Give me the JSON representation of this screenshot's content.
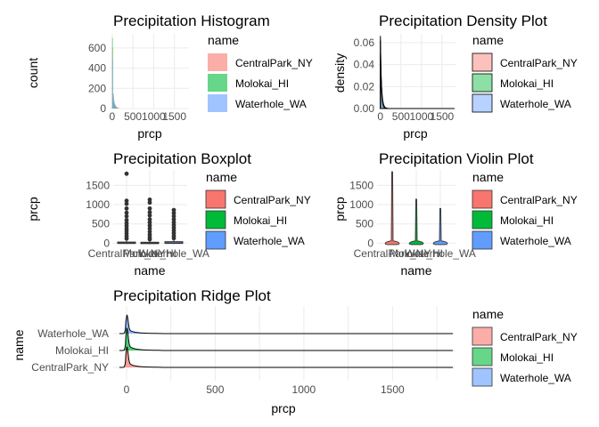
{
  "chart_data": [
    {
      "id": "hist",
      "type": "bar",
      "title": "Precipitation Histogram",
      "xlabel": "prcp",
      "ylabel": "count",
      "xlim": [
        -60,
        1850
      ],
      "ylim": [
        0,
        740
      ],
      "xticks": [
        0,
        500,
        1000,
        1500
      ],
      "xtick_labels": [
        "0",
        "500",
        "1000",
        "1500"
      ],
      "yticks": [
        0,
        200,
        400,
        600
      ],
      "yticks_labels": [
        "0",
        "200",
        "400",
        "600"
      ],
      "legend_title": "name",
      "series": [
        {
          "name": "CentralPark_NY",
          "color": "#F8766D",
          "bins": [
            [
              0,
              600
            ],
            [
              20,
              140
            ],
            [
              40,
              70
            ],
            [
              60,
              45
            ],
            [
              80,
              30
            ],
            [
              100,
              20
            ],
            [
              120,
              12
            ],
            [
              140,
              8
            ],
            [
              160,
              5
            ]
          ]
        },
        {
          "name": "Molokai_HI",
          "color": "#00BA38",
          "bins": [
            [
              0,
              700
            ],
            [
              20,
              110
            ],
            [
              40,
              55
            ],
            [
              60,
              30
            ],
            [
              80,
              18
            ],
            [
              100,
              10
            ],
            [
              120,
              6
            ]
          ]
        },
        {
          "name": "Waterhole_WA",
          "color": "#619CFF",
          "bins": [
            [
              0,
              480
            ],
            [
              20,
              150
            ],
            [
              40,
              80
            ],
            [
              60,
              40
            ],
            [
              80,
              20
            ],
            [
              100,
              10
            ]
          ]
        }
      ]
    },
    {
      "id": "density",
      "type": "area",
      "title": "Precipitation Density Plot",
      "xlabel": "prcp",
      "ylabel": "density",
      "xlim": [
        -60,
        1850
      ],
      "ylim": [
        0,
        0.068
      ],
      "xticks": [
        0,
        500,
        1000,
        1500
      ],
      "xtick_labels": [
        "0",
        "500",
        "1000",
        "1500"
      ],
      "yticks": [
        0,
        0.02,
        0.04,
        0.06
      ],
      "ytick_labels": [
        "0.00",
        "0.02",
        "0.04",
        "0.06"
      ],
      "legend_title": "name",
      "series": [
        {
          "name": "CentralPark_NY",
          "color": "#F8766D",
          "peak": 0.062,
          "decay": 25
        },
        {
          "name": "Molokai_HI",
          "color": "#00BA38",
          "peak": 0.066,
          "decay": 20
        },
        {
          "name": "Waterhole_WA",
          "color": "#619CFF",
          "peak": 0.05,
          "decay": 30
        }
      ]
    },
    {
      "id": "box",
      "type": "boxplot",
      "title": "Precipitation Boxplot",
      "xlabel": "name",
      "ylabel": "prcp",
      "ylim": [
        -60,
        1900
      ],
      "yticks": [
        0,
        500,
        1000,
        1500
      ],
      "ytick_labels": [
        "0",
        "500",
        "1000",
        "1500"
      ],
      "categories": [
        "CentralPark_NY",
        "Molokai_HI",
        "Waterhole_WA"
      ],
      "legend_title": "name",
      "series": [
        {
          "name": "CentralPark_NY",
          "color": "#F8766D",
          "q1": 0,
          "median": 0,
          "q3": 30,
          "whisker_hi": 75,
          "outliers": [
            120,
            180,
            250,
            320,
            380,
            450,
            520,
            600,
            700,
            790,
            900,
            1020,
            1100,
            1800
          ]
        },
        {
          "name": "Molokai_HI",
          "color": "#00BA38",
          "q1": 0,
          "median": 0,
          "q3": 25,
          "whisker_hi": 62,
          "outliers": [
            100,
            150,
            220,
            300,
            380,
            460,
            540,
            620,
            720,
            800,
            900,
            1050,
            1130
          ]
        },
        {
          "name": "Waterhole_WA",
          "color": "#619CFF",
          "q1": 0,
          "median": 0,
          "q3": 40,
          "whisker_hi": 100,
          "outliers": [
            130,
            190,
            260,
            330,
            400,
            470,
            540,
            620,
            700,
            780,
            860
          ]
        }
      ]
    },
    {
      "id": "violin",
      "type": "violin",
      "title": "Precipitation Violin Plot",
      "xlabel": "name",
      "ylabel": "prcp",
      "ylim": [
        -60,
        1900
      ],
      "yticks": [
        0,
        500,
        1000,
        1500
      ],
      "ytick_labels": [
        "0",
        "500",
        "1000",
        "1500"
      ],
      "categories": [
        "CentralPark_NY",
        "Molokai_HI",
        "Waterhole_WA"
      ],
      "legend_title": "name",
      "series": [
        {
          "name": "CentralPark_NY",
          "color": "#F8766D",
          "max": 1850
        },
        {
          "name": "Molokai_HI",
          "color": "#00BA38",
          "max": 1140
        },
        {
          "name": "Waterhole_WA",
          "color": "#619CFF",
          "max": 900
        }
      ]
    },
    {
      "id": "ridge",
      "type": "area",
      "title": "Precipitation Ridge Plot",
      "xlabel": "prcp",
      "ylabel": "name",
      "xlim": [
        -75,
        1850
      ],
      "xticks": [
        0,
        500,
        1000,
        1500
      ],
      "xtick_labels": [
        "0",
        "500",
        "1000",
        "1500"
      ],
      "categories": [
        "CentralPark_NY",
        "Molokai_HI",
        "Waterhole_WA"
      ],
      "legend_title": "name",
      "series": [
        {
          "name": "CentralPark_NY",
          "color": "#F8766D"
        },
        {
          "name": "Molokai_HI",
          "color": "#00BA38"
        },
        {
          "name": "Waterhole_WA",
          "color": "#619CFF"
        }
      ]
    }
  ]
}
